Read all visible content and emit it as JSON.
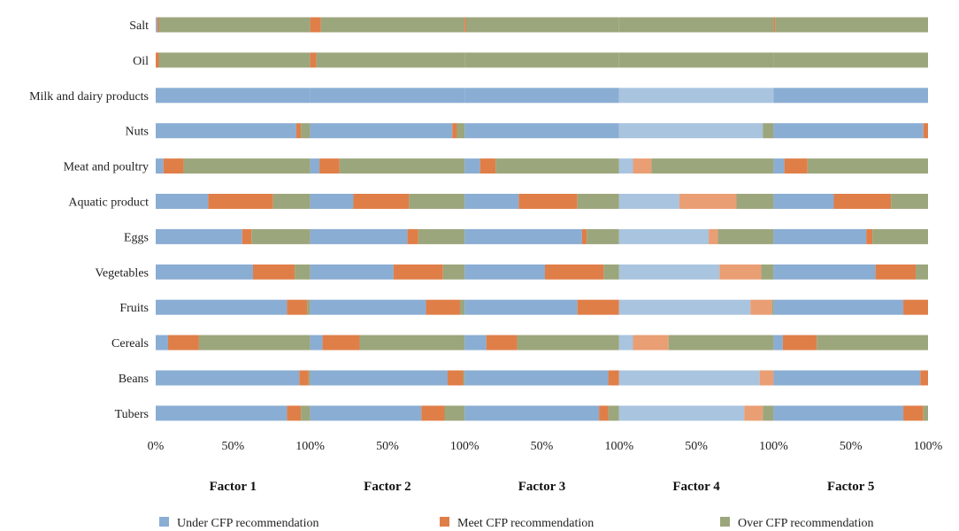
{
  "chart_data": {
    "type": "bar",
    "orientation": "horizontal",
    "stacked": "100%",
    "categories": [
      "Salt",
      "Oil",
      "Milk and dairy products",
      "Nuts",
      "Meat and poultry",
      "Aquatic product",
      "Eggs",
      "Vegetables",
      "Fruits",
      "Cereals",
      "Beans",
      "Tubers"
    ],
    "xlim": [
      0,
      100
    ],
    "tick_labels": [
      "0%",
      "50%",
      "100%",
      "50%",
      "100%",
      "50%",
      "100%",
      "50%",
      "100%",
      "50%",
      "100%"
    ],
    "series_names": [
      "Under CFP recommendation",
      "Meet CFP recommendation",
      "Over CFP recommendation"
    ],
    "colors": [
      "#8aadd3",
      "#e07e48",
      "#9ca67c"
    ],
    "factor4_colors": [
      "#a9c4df",
      "#ea9e74",
      "#9ca67c"
    ],
    "legend_position": "bottom",
    "grid": false,
    "panels": [
      {
        "name": "Factor 1",
        "under": [
          1,
          0,
          100,
          91,
          5,
          34,
          56,
          63,
          85,
          8,
          93,
          85
        ],
        "meet": [
          1,
          2,
          0,
          3,
          13,
          42,
          6,
          27,
          13,
          20,
          6,
          9
        ],
        "over": [
          98,
          98,
          0,
          6,
          82,
          24,
          38,
          10,
          2,
          72,
          1,
          6
        ]
      },
      {
        "name": "Factor 2",
        "under": [
          0,
          0,
          100,
          92,
          6,
          28,
          63,
          54,
          75,
          8,
          89,
          72
        ],
        "meet": [
          7,
          4,
          0,
          3,
          13,
          36,
          7,
          32,
          22,
          24,
          10,
          15
        ],
        "over": [
          93,
          96,
          0,
          5,
          81,
          36,
          30,
          14,
          3,
          68,
          1,
          13
        ]
      },
      {
        "name": "Factor 3",
        "under": [
          0,
          0,
          100,
          100,
          10,
          35,
          76,
          52,
          73,
          14,
          93,
          87
        ],
        "meet": [
          1,
          0,
          0,
          0,
          10,
          38,
          3,
          38,
          27,
          20,
          7,
          6
        ],
        "over": [
          99,
          100,
          0,
          0,
          80,
          27,
          21,
          10,
          0,
          66,
          0,
          7
        ]
      },
      {
        "name": "Factor 4",
        "under": [
          0,
          0,
          100,
          93,
          9,
          39,
          58,
          65,
          85,
          9,
          91,
          81
        ],
        "meet": [
          0,
          0,
          0,
          0,
          12,
          37,
          6,
          27,
          14,
          23,
          9,
          12
        ],
        "over": [
          100,
          100,
          0,
          7,
          79,
          24,
          36,
          8,
          1,
          68,
          0,
          7
        ]
      },
      {
        "name": "Factor 5",
        "under": [
          0,
          0,
          100,
          97,
          7,
          39,
          60,
          66,
          84,
          6,
          95,
          84
        ],
        "meet": [
          1,
          0,
          0,
          3,
          15,
          37,
          4,
          26,
          16,
          22,
          5,
          13
        ],
        "over": [
          99,
          100,
          0,
          0,
          78,
          24,
          36,
          8,
          0,
          72,
          0,
          3
        ]
      }
    ]
  }
}
